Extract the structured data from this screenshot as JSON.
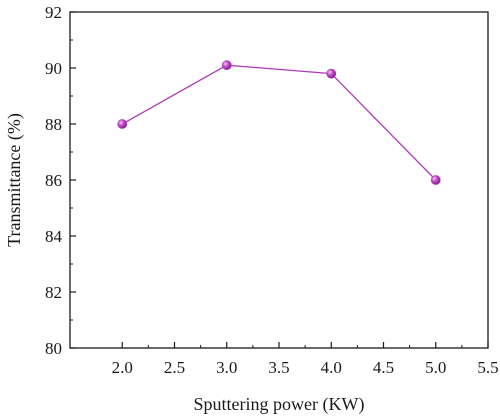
{
  "chart_data": {
    "type": "line",
    "title": "",
    "xlabel": "Sputtering power (KW)",
    "ylabel": "Transmittance (%)",
    "xlim": [
      1.5,
      5.5
    ],
    "ylim": [
      80,
      92
    ],
    "x_ticks": [
      "2.0",
      "2.5",
      "3.0",
      "3.5",
      "4.0",
      "4.5",
      "5.0",
      "5.5"
    ],
    "y_ticks": [
      "80",
      "82",
      "84",
      "86",
      "88",
      "90",
      "92"
    ],
    "grid": false,
    "legend": "none",
    "series": [
      {
        "x": [
          2.0,
          3.0,
          4.0,
          5.0
        ],
        "y": [
          88.0,
          90.1,
          89.8,
          86.0
        ]
      }
    ],
    "colors": {
      "line": "#b03ab8",
      "marker": "#b33bbd",
      "axis": "#1a1a1a"
    }
  }
}
